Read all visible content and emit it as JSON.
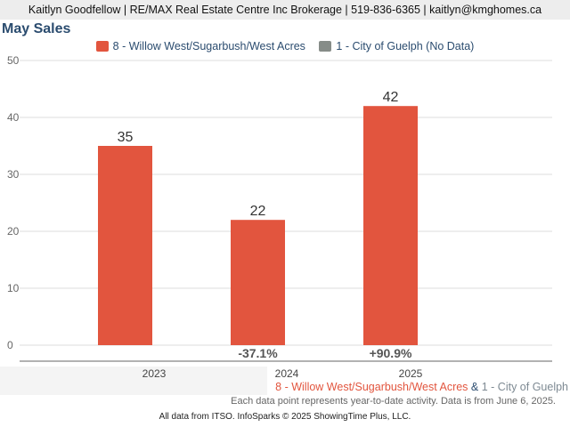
{
  "header": {
    "text": "Kaitlyn Goodfellow | RE/MAX Real Estate Centre Inc Brokerage | 519-836-6365 | kaitlyn@kmghomes.ca"
  },
  "colors": {
    "series_primary": "#e2553e",
    "series_secondary": "#868c88",
    "title": "#2b4c6f",
    "ampersand": "#2b4c6f",
    "secondary_text": "#7e8a93"
  },
  "chart_data": {
    "type": "bar",
    "title": "May Sales",
    "xlabel": "",
    "ylabel": "",
    "categories": [
      "2023",
      "2024",
      "2025"
    ],
    "series": [
      {
        "name": "8 - Willow West/Sugarbush/West Acres",
        "values": [
          35,
          22,
          42
        ]
      },
      {
        "name": "1 - City of Guelph (No Data)",
        "values": [
          null,
          null,
          null
        ]
      }
    ],
    "data_labels": [
      "35",
      "22",
      "42"
    ],
    "change_labels": [
      "",
      "-37.1%",
      "+90.9%"
    ],
    "ylim": [
      0,
      50
    ],
    "yticks": [
      0,
      10,
      20,
      30,
      40,
      50
    ],
    "grid": true,
    "legend_position": "top-center"
  },
  "footer": {
    "series_primary_label": "8 - Willow West/Sugarbush/West Acres",
    "ampersand": " & ",
    "series_secondary_label": "1 - City of Guelph",
    "note": "Each data point represents year-to-date activity. Data is from June 6, 2025.",
    "credit": "All data from ITSO. InfoSparks © 2025 ShowingTime Plus, LLC."
  }
}
